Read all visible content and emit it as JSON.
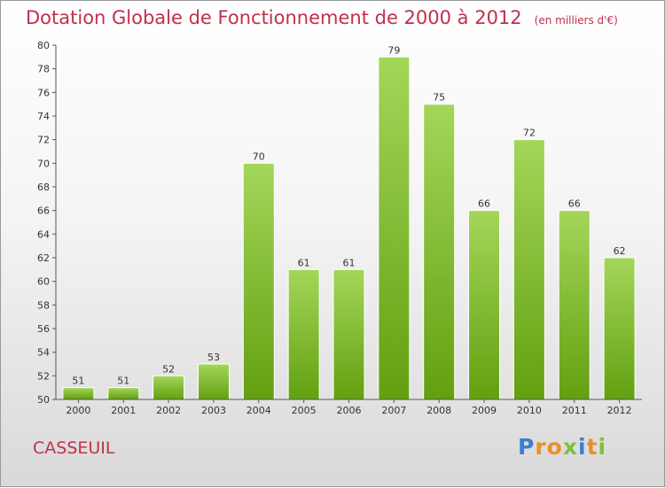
{
  "header": {
    "title": "Dotation Globale de Fonctionnement de 2000 à 2012",
    "subtitle": "(en milliers d'€)"
  },
  "footer": {
    "commune": "CASSEUIL",
    "logo_letters": [
      {
        "char": "P",
        "color": "#3a7fd0"
      },
      {
        "char": "r",
        "color": "#e8902a"
      },
      {
        "char": "o",
        "color": "#e8902a"
      },
      {
        "char": "x",
        "color": "#7cc23a"
      },
      {
        "char": "i",
        "color": "#3a7fd0"
      },
      {
        "char": "t",
        "color": "#e8902a"
      },
      {
        "char": "i",
        "color": "#7cc23a"
      }
    ]
  },
  "chart_data": {
    "type": "bar",
    "categories": [
      "2000",
      "2001",
      "2002",
      "2003",
      "2004",
      "2005",
      "2006",
      "2007",
      "2008",
      "2009",
      "2010",
      "2011",
      "2012"
    ],
    "values": [
      51,
      51,
      52,
      53,
      70,
      61,
      61,
      79,
      75,
      66,
      72,
      66,
      62
    ],
    "ylim": [
      50,
      80
    ],
    "yticks": [
      50,
      52,
      54,
      56,
      58,
      60,
      62,
      64,
      66,
      68,
      70,
      72,
      74,
      76,
      78,
      80
    ],
    "grid": false,
    "colors": {
      "bar_light": "#a4d65a",
      "bar_dark": "#62a010",
      "axis": "#555555"
    }
  }
}
